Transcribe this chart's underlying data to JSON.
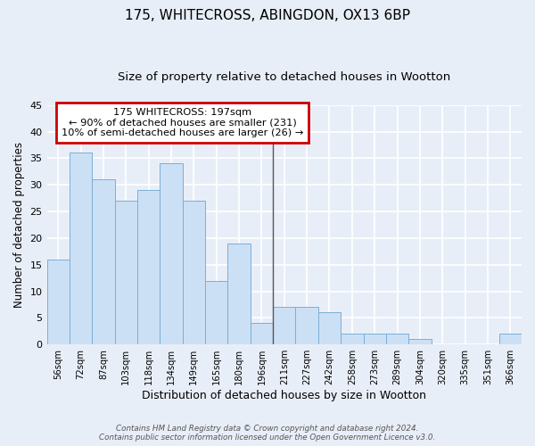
{
  "title": "175, WHITECROSS, ABINGDON, OX13 6BP",
  "subtitle": "Size of property relative to detached houses in Wootton",
  "xlabel": "Distribution of detached houses by size in Wootton",
  "ylabel": "Number of detached properties",
  "bins": [
    "56sqm",
    "72sqm",
    "87sqm",
    "103sqm",
    "118sqm",
    "134sqm",
    "149sqm",
    "165sqm",
    "180sqm",
    "196sqm",
    "211sqm",
    "227sqm",
    "242sqm",
    "258sqm",
    "273sqm",
    "289sqm",
    "304sqm",
    "320sqm",
    "335sqm",
    "351sqm",
    "366sqm"
  ],
  "values": [
    16,
    36,
    31,
    27,
    29,
    34,
    27,
    12,
    19,
    4,
    7,
    7,
    6,
    2,
    2,
    2,
    1,
    0,
    0,
    0,
    2
  ],
  "bar_color": "#cce0f5",
  "bar_edge_color": "#7bafd4",
  "vline_x_index": 9,
  "vline_color": "#555555",
  "ylim": [
    0,
    45
  ],
  "yticks": [
    0,
    5,
    10,
    15,
    20,
    25,
    30,
    35,
    40,
    45
  ],
  "annotation_text": "175 WHITECROSS: 197sqm\n← 90% of detached houses are smaller (231)\n10% of semi-detached houses are larger (26) →",
  "annotation_box_color": "#ffffff",
  "annotation_box_edge_color": "#cc0000",
  "footer_text": "Contains HM Land Registry data © Crown copyright and database right 2024.\nContains public sector information licensed under the Open Government Licence v3.0.",
  "background_color": "#e8eef8",
  "grid_color": "#ffffff",
  "title_fontsize": 11,
  "subtitle_fontsize": 9.5,
  "xlabel_fontsize": 9,
  "ylabel_fontsize": 8.5
}
